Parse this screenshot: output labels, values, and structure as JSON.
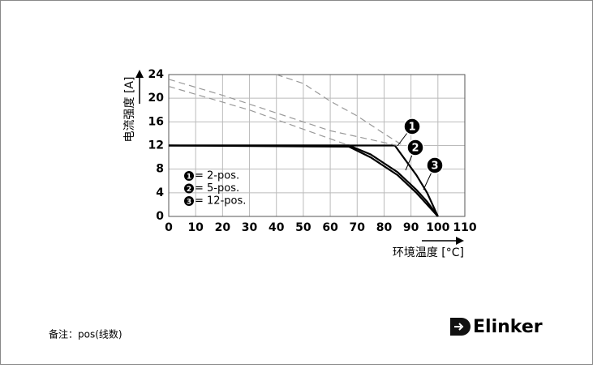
{
  "chart_data": {
    "type": "line",
    "y_label": "电流强度 [A]",
    "x_label": "环境温度 [°C]",
    "xlim": [
      0,
      110
    ],
    "xticks": [
      0,
      10,
      20,
      30,
      40,
      50,
      60,
      70,
      80,
      90,
      100,
      110
    ],
    "ylim": [
      0,
      24
    ],
    "yticks": [
      0,
      4,
      8,
      12,
      16,
      20,
      24
    ],
    "grid": true,
    "series": [
      {
        "name": "= 2-pos.",
        "marker": "1",
        "color": "#000000",
        "dashed": false,
        "x": [
          0,
          84,
          88,
          92,
          96,
          98,
          100
        ],
        "values": [
          12,
          12,
          9.5,
          7,
          4,
          2,
          0
        ]
      },
      {
        "name": "= 5-pos.",
        "marker": "2",
        "color": "#000000",
        "dashed": false,
        "x": [
          0,
          67,
          75,
          85,
          92,
          96,
          100
        ],
        "values": [
          12,
          12,
          10.5,
          7.5,
          4.5,
          2.5,
          0
        ]
      },
      {
        "name": "= 12-pos.",
        "marker": "3",
        "color": "#000000",
        "dashed": false,
        "x": [
          0,
          67,
          75,
          85,
          92,
          96,
          100
        ],
        "values": [
          12,
          11.8,
          10,
          7,
          4,
          2,
          0
        ]
      },
      {
        "color": "#999999",
        "dashed": true,
        "x": [
          0,
          20,
          40,
          60,
          85
        ],
        "values": [
          23.2,
          20.5,
          17.5,
          14.5,
          12
        ]
      },
      {
        "color": "#999999",
        "dashed": true,
        "x": [
          0,
          30,
          67
        ],
        "values": [
          22,
          18,
          12
        ]
      },
      {
        "color": "#999999",
        "dashed": true,
        "x": [
          40,
          50,
          60,
          70,
          80,
          87
        ],
        "values": [
          24,
          22.5,
          19.5,
          17,
          14,
          12
        ]
      }
    ]
  },
  "footnote": "备注：pos(线数)",
  "logo": "Elinker"
}
